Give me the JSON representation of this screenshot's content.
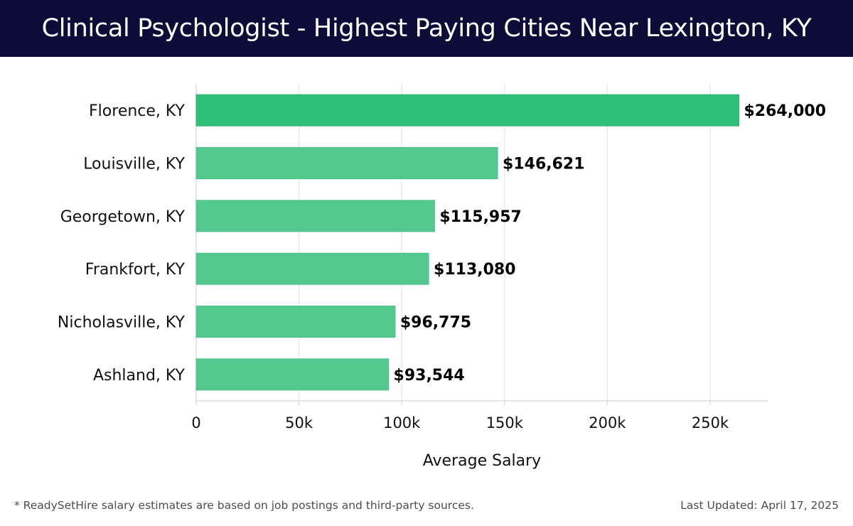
{
  "header": {
    "title": "Clinical Psychologist - Highest Paying Cities Near Lexington, KY"
  },
  "chart_data": {
    "type": "bar",
    "orientation": "horizontal",
    "categories": [
      "Florence, KY",
      "Louisville, KY",
      "Georgetown, KY",
      "Frankfort, KY",
      "Nicholasville, KY",
      "Ashland, KY"
    ],
    "values": [
      264000,
      146621,
      115957,
      113080,
      96775,
      93544
    ],
    "value_labels": [
      "$264,000",
      "$146,621",
      "$115,957",
      "$113,080",
      "$96,775",
      "$93,544"
    ],
    "xlabel": "Average Salary",
    "ylabel": "",
    "xlim": [
      0,
      278000
    ],
    "x_ticks": [
      0,
      50000,
      100000,
      150000,
      200000,
      250000
    ],
    "x_tick_labels": [
      "0",
      "50k",
      "100k",
      "150k",
      "200k",
      "250k"
    ],
    "grid": true,
    "colors": {
      "top_bar": "#2ec077",
      "bar": "#53c98f",
      "grid": "#e3e3e3",
      "axis": "#cccccc"
    }
  },
  "footer": {
    "note": "* ReadySetHire salary estimates are based on job postings and third-party sources.",
    "updated": "Last Updated: April 17, 2025"
  }
}
